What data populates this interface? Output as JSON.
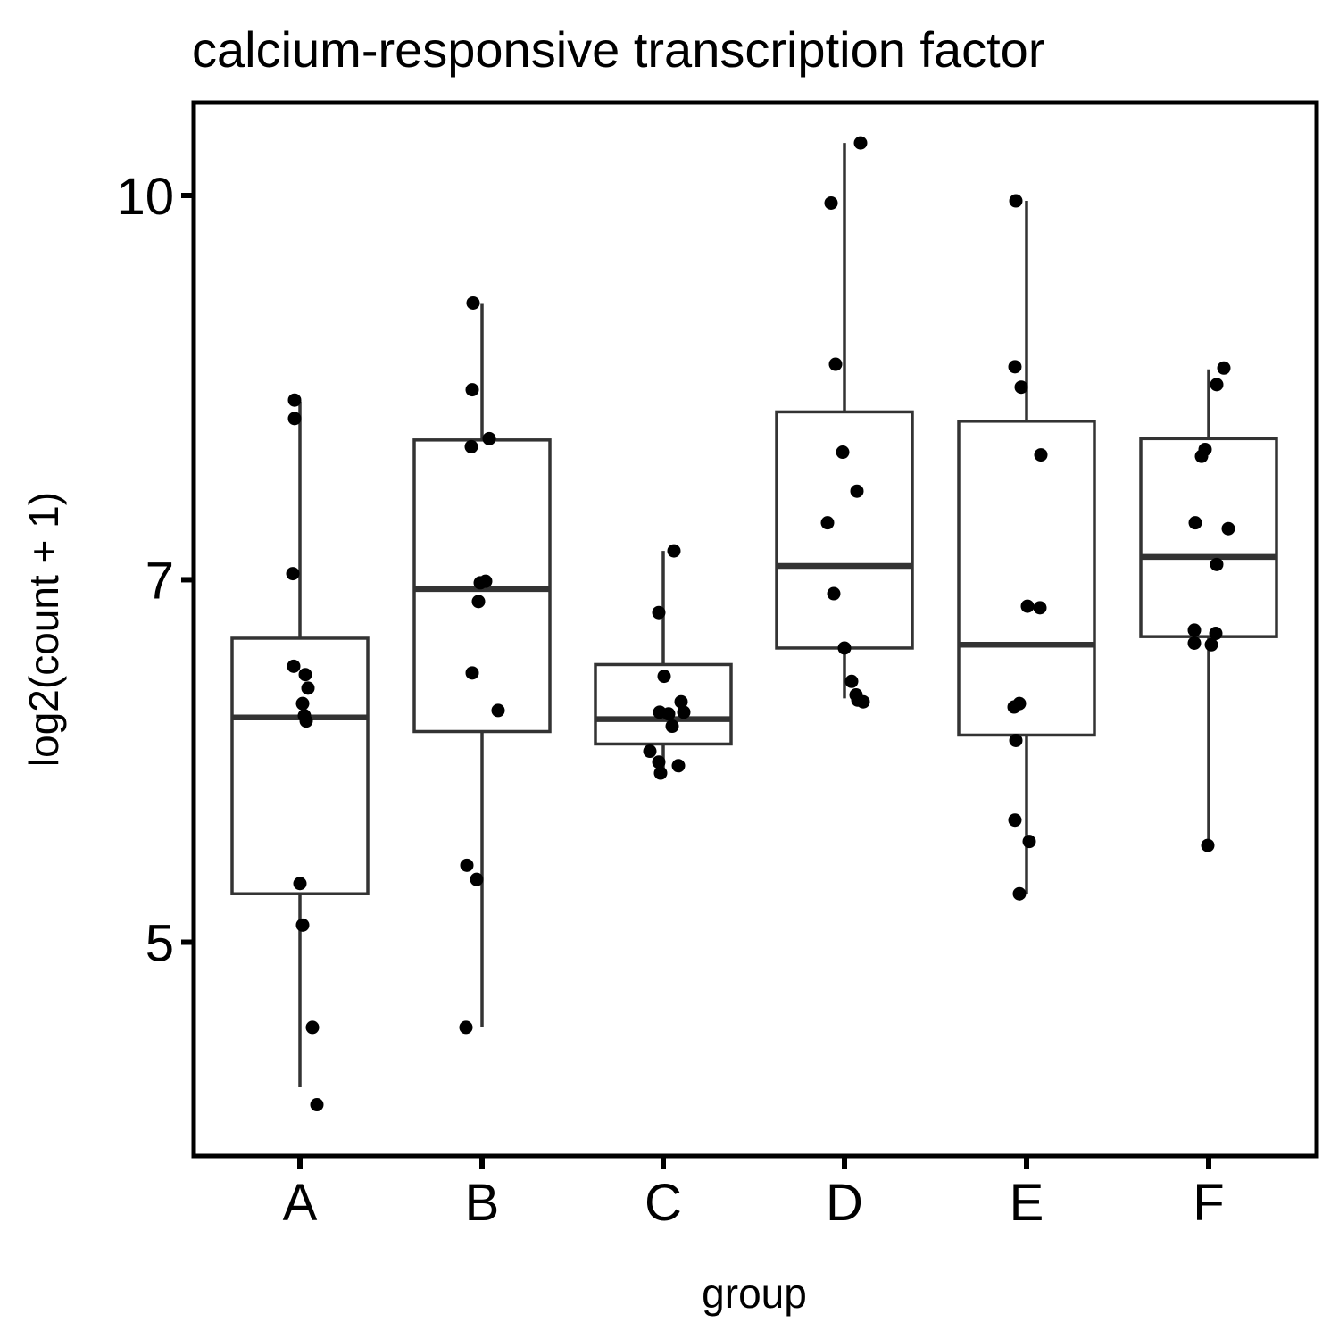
{
  "chart_data": {
    "type": "boxplot",
    "title": "calcium-responsive transcription factor",
    "xlabel": "group",
    "ylabel": "log2(count + 1)",
    "scale": "log",
    "categories": [
      "A",
      "B",
      "C",
      "D",
      "E",
      "F"
    ],
    "yticks": [
      5,
      7,
      10
    ],
    "ylim": [
      4.1,
      10.9
    ],
    "grid": false,
    "legend": "none",
    "box_stats": [
      {
        "group": "A",
        "whisker_low": 4.37,
        "q1": 5.23,
        "median": 6.16,
        "q3": 6.63,
        "whisker_high": 8.26
      },
      {
        "group": "B",
        "whisker_low": 4.62,
        "q1": 6.08,
        "median": 6.94,
        "q3": 7.97,
        "whisker_high": 9.05
      },
      {
        "group": "C",
        "whisker_low": 5.83,
        "q1": 6.01,
        "median": 6.15,
        "q3": 6.47,
        "whisker_high": 7.19
      },
      {
        "group": "D",
        "whisker_low": 6.27,
        "q1": 6.57,
        "median": 7.09,
        "q3": 8.18,
        "whisker_high": 10.5
      },
      {
        "group": "E",
        "whisker_low": 5.23,
        "q1": 6.06,
        "median": 6.59,
        "q3": 8.11,
        "whisker_high": 9.95
      },
      {
        "group": "F",
        "whisker_low": 5.47,
        "q1": 6.64,
        "median": 7.15,
        "q3": 7.98,
        "whisker_high": 8.51
      }
    ],
    "points": [
      {
        "group": "A",
        "values": [
          8.27,
          8.13,
          7.04,
          6.46,
          6.41,
          6.33,
          6.24,
          6.17,
          6.14,
          5.28,
          5.08,
          4.62,
          4.3
        ]
      },
      {
        "group": "B",
        "values": [
          9.05,
          8.35,
          7.98,
          7.92,
          6.99,
          6.98,
          6.86,
          6.42,
          6.2,
          5.37,
          5.3,
          4.62
        ]
      },
      {
        "group": "C",
        "values": [
          7.19,
          6.79,
          6.4,
          6.25,
          6.19,
          6.19,
          6.18,
          6.11,
          5.97,
          5.91,
          5.89,
          5.85
        ]
      },
      {
        "group": "D",
        "values": [
          10.5,
          9.93,
          8.55,
          7.88,
          7.6,
          7.38,
          6.91,
          6.57,
          6.37,
          6.29,
          6.26,
          6.25
        ]
      },
      {
        "group": "E",
        "values": [
          9.95,
          8.53,
          8.37,
          7.86,
          6.83,
          6.82,
          6.24,
          6.22,
          6.03,
          5.6,
          5.49,
          5.23
        ]
      },
      {
        "group": "F",
        "values": [
          8.52,
          8.39,
          7.9,
          7.85,
          7.38,
          7.34,
          7.1,
          6.68,
          6.66,
          6.6,
          6.59,
          5.47
        ]
      }
    ]
  }
}
